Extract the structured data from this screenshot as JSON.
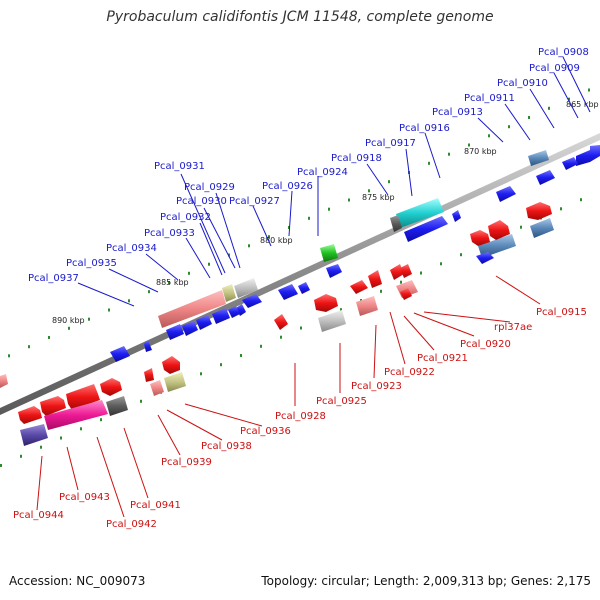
{
  "title": "Pyrobaculum calidifontis JCM 11548, complete genome",
  "footer": {
    "accession": "Accession: NC_009073",
    "summary": "Topology: circular; Length: 2,009,313 bp; Genes: 2,175"
  },
  "scale_labels": [
    "865 kbp",
    "870 kbp",
    "875 kbp",
    "880 kbp",
    "885 kbp",
    "890 kbp"
  ],
  "forward_genes": [
    "Pcal_0908",
    "Pcal_0909",
    "Pcal_0910",
    "Pcal_0911",
    "Pcal_0913",
    "Pcal_0916",
    "Pcal_0917",
    "Pcal_0918",
    "Pcal_0924",
    "Pcal_0926",
    "Pcal_0927",
    "Pcal_0929",
    "Pcal_0930",
    "Pcal_0931",
    "Pcal_0932",
    "Pcal_0933",
    "Pcal_0934",
    "Pcal_0935",
    "Pcal_0937"
  ],
  "reverse_genes": [
    "Pcal_0915",
    "rpl37ae",
    "Pcal_0920",
    "Pcal_0921",
    "Pcal_0922",
    "Pcal_0923",
    "Pcal_0925",
    "Pcal_0928",
    "Pcal_0936",
    "Pcal_0938",
    "Pcal_0939",
    "Pcal_0941",
    "Pcal_0942",
    "Pcal_0943",
    "Pcal_0944"
  ],
  "colors": {
    "forward_label": "#1a1acc",
    "reverse_label": "#cc1111",
    "backbone": "#8a8a8a",
    "tick": "#2e8b2e",
    "forward_gene": "#1f1fe6",
    "reverse_gene": "#e01010"
  }
}
